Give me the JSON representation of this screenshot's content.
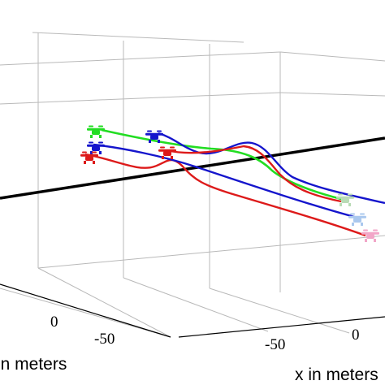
{
  "chart_data": {
    "type": "line",
    "view": "3d",
    "grid": true,
    "legend": "none",
    "xlabel": "x in meters",
    "ylabel": "in meters",
    "ticks_x": [
      "-50",
      "0"
    ],
    "ticks_y": [
      "0",
      "-50"
    ],
    "colors": {
      "red": "#dd1a1a",
      "blue": "#1515cc",
      "green": "#22dd22",
      "reference": "#000000",
      "ghost_green": "#b9dbb6",
      "ghost_blue": "#aac8ee",
      "ghost_pink": "#f2a6c8",
      "grid": "#b9b9b9"
    },
    "series": [
      {
        "color": "red",
        "icon": "quadrotor-icon"
      },
      {
        "color": "blue",
        "icon": "quadrotor-icon"
      },
      {
        "color": "green",
        "icon": "quadrotor-icon"
      },
      {
        "color": "blue",
        "icon": "quadrotor-icon"
      },
      {
        "color": "red",
        "icon": "quadrotor-icon"
      }
    ]
  }
}
